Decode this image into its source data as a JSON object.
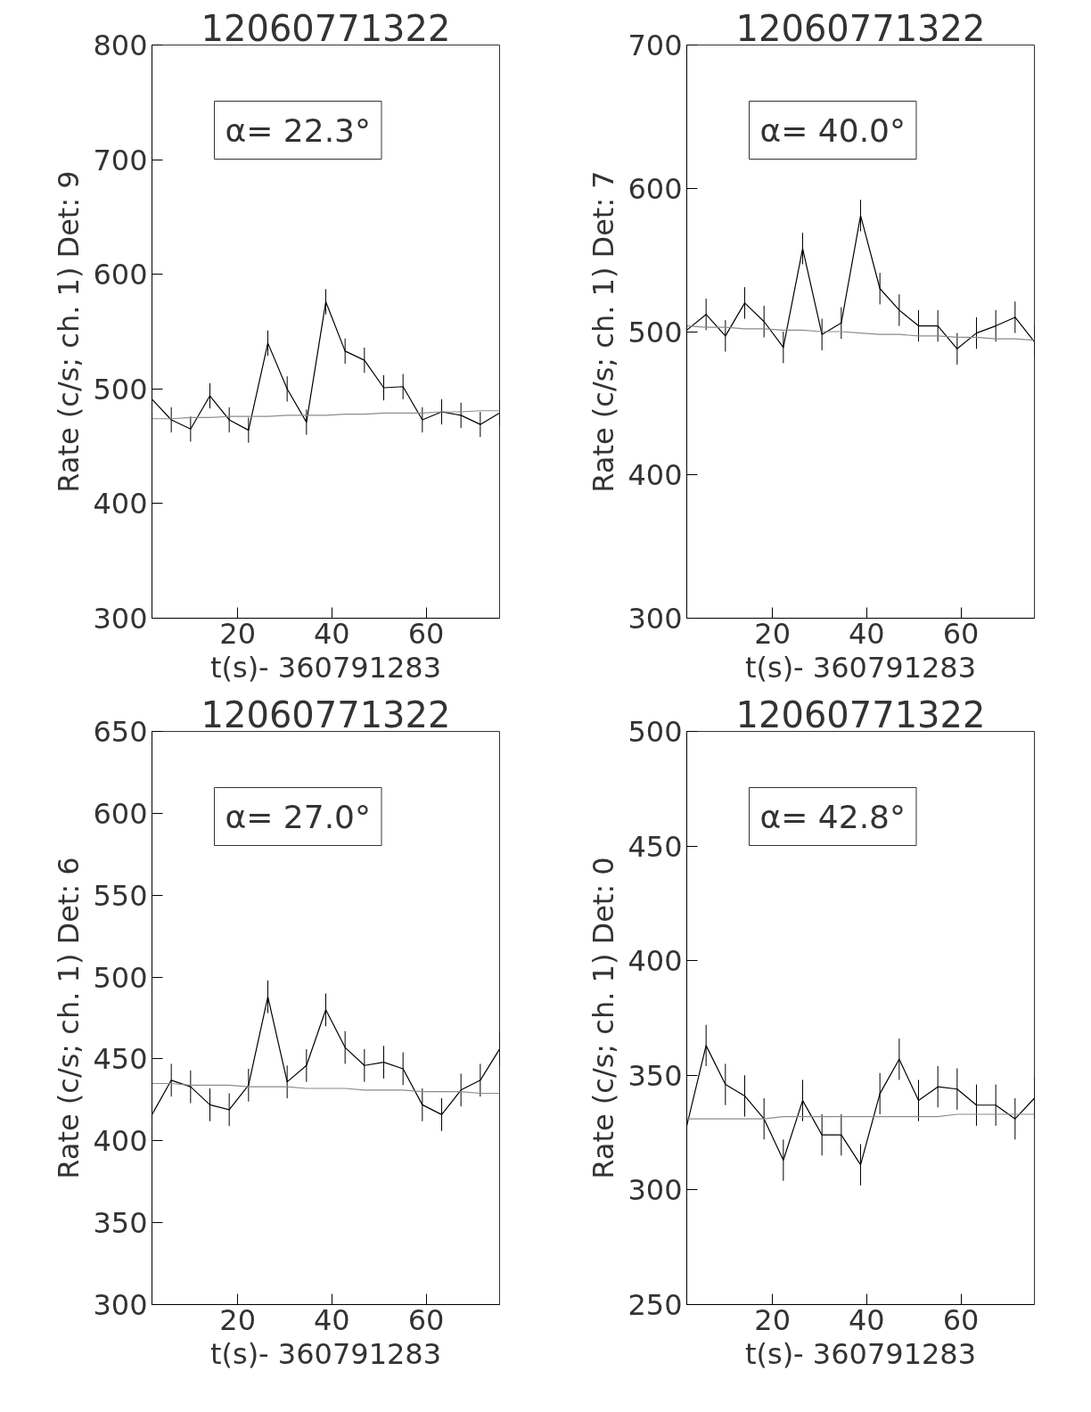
{
  "chart_data": [
    {
      "type": "line",
      "title": "12060771322",
      "xlabel": "t(s)- 360791283",
      "ylabel": "Rate (c/s; ch. 1) Det: 9",
      "annotations": [
        "α= 22.3°"
      ],
      "xlim": [
        1.8,
        75.6
      ],
      "ylim": [
        300,
        800
      ],
      "xticks": [
        20,
        40,
        60
      ],
      "yticks": [
        300,
        400,
        500,
        600,
        700,
        800
      ],
      "grid": false,
      "marker": "none",
      "x": [
        1.8,
        5.9,
        10.0,
        14.1,
        18.2,
        22.3,
        26.4,
        30.5,
        34.6,
        38.7,
        42.8,
        46.9,
        51.0,
        55.1,
        59.2,
        63.3,
        67.4,
        71.5,
        75.6
      ],
      "series": [
        {
          "color": "#000000",
          "values": [
            491,
            473,
            465,
            494,
            473,
            464,
            540,
            500,
            471,
            576,
            533,
            525,
            501,
            502,
            473,
            480,
            477,
            469,
            479
          ],
          "errors": [
            11,
            11,
            11,
            11,
            11,
            11,
            11,
            11,
            11,
            11,
            11,
            11,
            11,
            11,
            11,
            11,
            11,
            11,
            11
          ]
        },
        {
          "color": "#8c8c8c",
          "values": [
            474,
            474,
            475,
            475,
            476,
            476,
            476,
            477,
            477,
            477,
            478,
            478,
            479,
            479,
            479,
            480,
            480,
            481,
            481
          ]
        }
      ]
    },
    {
      "type": "line",
      "title": "12060771322",
      "xlabel": "t(s)- 360791283",
      "ylabel": "Rate (c/s; ch. 1) Det: 7",
      "annotations": [
        "α= 40.0°"
      ],
      "xlim": [
        1.8,
        75.6
      ],
      "ylim": [
        300,
        700
      ],
      "xticks": [
        20,
        40,
        60
      ],
      "yticks": [
        300,
        400,
        500,
        600,
        700
      ],
      "grid": false,
      "marker": "none",
      "x": [
        1.8,
        5.9,
        10.0,
        14.1,
        18.2,
        22.3,
        26.4,
        30.5,
        34.6,
        38.7,
        42.8,
        46.9,
        51.0,
        55.1,
        59.2,
        63.3,
        67.4,
        71.5,
        75.6
      ],
      "series": [
        {
          "color": "#000000",
          "values": [
            501,
            512,
            497,
            520,
            507,
            489,
            558,
            498,
            506,
            581,
            530,
            515,
            504,
            504,
            488,
            499,
            504,
            510,
            493
          ],
          "errors": [
            11,
            11,
            11,
            11,
            11,
            11,
            11,
            11,
            11,
            11,
            11,
            11,
            11,
            11,
            11,
            11,
            11,
            11,
            11
          ]
        },
        {
          "color": "#8c8c8c",
          "values": [
            504,
            503,
            503,
            502,
            502,
            501,
            501,
            500,
            500,
            499,
            498,
            498,
            497,
            497,
            496,
            496,
            495,
            495,
            494
          ]
        }
      ]
    },
    {
      "type": "line",
      "title": "12060771322",
      "xlabel": "t(s)- 360791283",
      "ylabel": "Rate (c/s; ch. 1) Det: 6",
      "annotations": [
        "α= 27.0°"
      ],
      "xlim": [
        1.8,
        75.6
      ],
      "ylim": [
        300,
        650
      ],
      "xticks": [
        20,
        40,
        60
      ],
      "yticks": [
        300,
        350,
        400,
        450,
        500,
        550,
        600,
        650
      ],
      "grid": false,
      "marker": "none",
      "x": [
        1.8,
        5.9,
        10.0,
        14.1,
        18.2,
        22.3,
        26.4,
        30.5,
        34.6,
        38.7,
        42.8,
        46.9,
        51.0,
        55.1,
        59.2,
        63.3,
        67.4,
        71.5,
        75.6
      ],
      "series": [
        {
          "color": "#000000",
          "values": [
            416,
            437,
            433,
            422,
            419,
            434,
            488,
            436,
            446,
            480,
            457,
            446,
            448,
            444,
            422,
            416,
            431,
            437,
            456
          ],
          "errors": [
            10,
            10,
            10,
            10,
            10,
            10,
            10,
            10,
            10,
            10,
            10,
            10,
            10,
            10,
            10,
            10,
            10,
            10,
            10
          ]
        },
        {
          "color": "#8c8c8c",
          "values": [
            435,
            435,
            434,
            434,
            434,
            433,
            433,
            433,
            432,
            432,
            432,
            431,
            431,
            431,
            430,
            430,
            430,
            429,
            429
          ]
        }
      ]
    },
    {
      "type": "line",
      "title": "12060771322",
      "xlabel": "t(s)- 360791283",
      "ylabel": "Rate (c/s; ch. 1) Det: 0",
      "annotations": [
        "α= 42.8°"
      ],
      "xlim": [
        1.8,
        75.6
      ],
      "ylim": [
        250,
        500
      ],
      "xticks": [
        20,
        40,
        60
      ],
      "yticks": [
        250,
        300,
        350,
        400,
        450,
        500
      ],
      "grid": false,
      "marker": "none",
      "x": [
        1.8,
        5.9,
        10.0,
        14.1,
        18.2,
        22.3,
        26.4,
        30.5,
        34.6,
        38.7,
        42.8,
        46.9,
        51.0,
        55.1,
        59.2,
        63.3,
        67.4,
        71.5,
        75.6
      ],
      "series": [
        {
          "color": "#000000",
          "values": [
            328,
            363,
            346,
            341,
            331,
            313,
            339,
            324,
            324,
            311,
            342,
            357,
            339,
            345,
            344,
            337,
            337,
            331,
            340
          ],
          "errors": [
            9,
            9,
            9,
            9,
            9,
            9,
            9,
            9,
            9,
            9,
            9,
            9,
            9,
            9,
            9,
            9,
            9,
            9,
            9
          ]
        },
        {
          "color": "#8c8c8c",
          "values": [
            331,
            331,
            331,
            331,
            331,
            332,
            332,
            332,
            332,
            332,
            332,
            332,
            332,
            332,
            333,
            333,
            333,
            333,
            333
          ]
        }
      ]
    }
  ]
}
